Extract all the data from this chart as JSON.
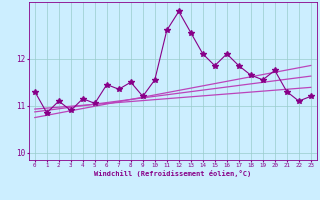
{
  "title": "",
  "xlabel": "Windchill (Refroidissement éolien,°C)",
  "background_color": "#cceeff",
  "line_color": "#880088",
  "smooth_color": "#bb44bb",
  "x_main": [
    0,
    1,
    2,
    3,
    4,
    5,
    6,
    7,
    8,
    9,
    10,
    11,
    12,
    13,
    14,
    15,
    16,
    17,
    18,
    19,
    20,
    21,
    22,
    23
  ],
  "y_main": [
    11.3,
    10.85,
    11.1,
    10.9,
    11.15,
    11.05,
    11.45,
    11.35,
    11.5,
    11.2,
    11.55,
    12.6,
    13.0,
    12.55,
    12.1,
    11.85,
    12.1,
    11.85,
    11.65,
    11.55,
    11.75,
    11.3,
    11.1,
    11.2
  ],
  "ylim": [
    9.85,
    13.2
  ],
  "xlim": [
    -0.5,
    23.5
  ],
  "yticks": [
    10,
    11,
    12
  ],
  "xticks": [
    0,
    1,
    2,
    3,
    4,
    5,
    6,
    7,
    8,
    9,
    10,
    11,
    12,
    13,
    14,
    15,
    16,
    17,
    18,
    19,
    20,
    21,
    22,
    23
  ],
  "grid_color": "#99cccc",
  "marker": "*",
  "marker_size": 4,
  "smooth_lines": [
    {
      "slope": 0.048,
      "intercept": 10.75
    },
    {
      "slope": 0.033,
      "intercept": 10.87
    },
    {
      "slope": 0.02,
      "intercept": 10.93
    }
  ]
}
